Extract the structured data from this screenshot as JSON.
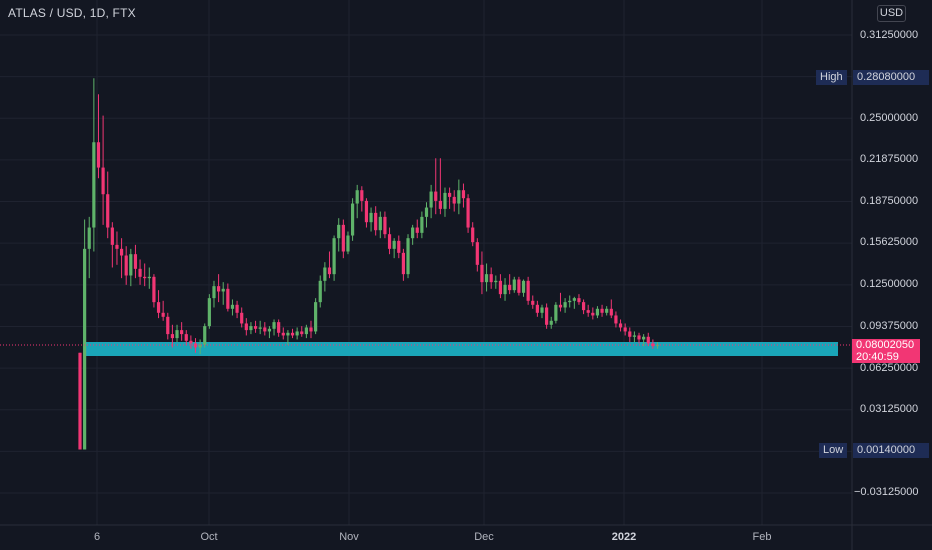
{
  "header": {
    "title": "ATLAS / USD, 1D, FTX",
    "currency_button": "USD"
  },
  "price_axis": {
    "ticks": [
      "0.31250000",
      "0.25000000",
      "0.21875000",
      "0.18750000",
      "0.15625000",
      "0.12500000",
      "0.09375000",
      "0.06250000",
      "0.03125000",
      "−0.03125000"
    ]
  },
  "time_axis": {
    "ticks": [
      "6",
      "Oct",
      "Nov",
      "Dec",
      "2022",
      "Feb"
    ]
  },
  "markers": {
    "high_label": "High",
    "high_value": "0.28080000",
    "low_label": "Low",
    "low_value": "0.00140000",
    "last_price": "0.08002050",
    "countdown": "20:40:59"
  },
  "colors": {
    "background": "#131722",
    "up": "#26a69a",
    "up_candle": "#5fb36a",
    "down_candle": "#f23674",
    "support_zone": "#1aa5b8",
    "last_price": "#f23674"
  },
  "chart_data": {
    "type": "candlestick",
    "title": "ATLAS / USD, 1D, FTX",
    "x_ticks": [
      "6",
      "Oct",
      "Nov",
      "Dec",
      "2022",
      "Feb"
    ],
    "ylim": [
      -0.04,
      0.325
    ],
    "grid": true,
    "high": 0.2808,
    "low": 0.0014,
    "last": 0.0800205,
    "support_zone": {
      "from": 0.072,
      "to": 0.08
    },
    "candles": [
      [
        0.074,
        0.074,
        0.0014,
        0.0014
      ],
      [
        0.0014,
        0.174,
        0.0014,
        0.152
      ],
      [
        0.152,
        0.176,
        0.13,
        0.168
      ],
      [
        0.168,
        0.28,
        0.15,
        0.232
      ],
      [
        0.232,
        0.268,
        0.205,
        0.213
      ],
      [
        0.213,
        0.252,
        0.17,
        0.193
      ],
      [
        0.193,
        0.21,
        0.16,
        0.168
      ],
      [
        0.168,
        0.172,
        0.138,
        0.155
      ],
      [
        0.155,
        0.165,
        0.14,
        0.152
      ],
      [
        0.152,
        0.16,
        0.13,
        0.147
      ],
      [
        0.147,
        0.154,
        0.125,
        0.132
      ],
      [
        0.132,
        0.152,
        0.124,
        0.148
      ],
      [
        0.148,
        0.155,
        0.13,
        0.137
      ],
      [
        0.137,
        0.144,
        0.125,
        0.131
      ],
      [
        0.131,
        0.141,
        0.124,
        0.13
      ],
      [
        0.13,
        0.138,
        0.122,
        0.131
      ],
      [
        0.131,
        0.133,
        0.108,
        0.112
      ],
      [
        0.112,
        0.121,
        0.1,
        0.104
      ],
      [
        0.104,
        0.113,
        0.098,
        0.101
      ],
      [
        0.101,
        0.104,
        0.084,
        0.088
      ],
      [
        0.088,
        0.095,
        0.078,
        0.085
      ],
      [
        0.085,
        0.095,
        0.082,
        0.091
      ],
      [
        0.091,
        0.097,
        0.083,
        0.088
      ],
      [
        0.088,
        0.091,
        0.08,
        0.083
      ],
      [
        0.083,
        0.087,
        0.077,
        0.081
      ],
      [
        0.081,
        0.085,
        0.074,
        0.078
      ],
      [
        0.078,
        0.084,
        0.073,
        0.08
      ],
      [
        0.08,
        0.096,
        0.078,
        0.094
      ],
      [
        0.094,
        0.118,
        0.092,
        0.115
      ],
      [
        0.115,
        0.128,
        0.108,
        0.124
      ],
      [
        0.124,
        0.133,
        0.112,
        0.12
      ],
      [
        0.12,
        0.127,
        0.11,
        0.122
      ],
      [
        0.122,
        0.126,
        0.105,
        0.107
      ],
      [
        0.107,
        0.114,
        0.102,
        0.11
      ],
      [
        0.11,
        0.113,
        0.1,
        0.104
      ],
      [
        0.104,
        0.108,
        0.093,
        0.096
      ],
      [
        0.096,
        0.1,
        0.087,
        0.091
      ],
      [
        0.091,
        0.097,
        0.088,
        0.094
      ],
      [
        0.094,
        0.098,
        0.089,
        0.092
      ],
      [
        0.092,
        0.098,
        0.088,
        0.093
      ],
      [
        0.093,
        0.097,
        0.087,
        0.09
      ],
      [
        0.09,
        0.094,
        0.085,
        0.092
      ],
      [
        0.092,
        0.099,
        0.087,
        0.097
      ],
      [
        0.097,
        0.099,
        0.086,
        0.089
      ],
      [
        0.089,
        0.093,
        0.084,
        0.087
      ],
      [
        0.087,
        0.091,
        0.08,
        0.089
      ],
      [
        0.089,
        0.092,
        0.085,
        0.087
      ],
      [
        0.087,
        0.093,
        0.084,
        0.09
      ],
      [
        0.09,
        0.094,
        0.086,
        0.088
      ],
      [
        0.088,
        0.095,
        0.085,
        0.093
      ],
      [
        0.093,
        0.098,
        0.085,
        0.09
      ],
      [
        0.09,
        0.115,
        0.088,
        0.112
      ],
      [
        0.112,
        0.132,
        0.108,
        0.128
      ],
      [
        0.128,
        0.142,
        0.12,
        0.138
      ],
      [
        0.138,
        0.15,
        0.13,
        0.133
      ],
      [
        0.133,
        0.162,
        0.128,
        0.16
      ],
      [
        0.16,
        0.175,
        0.15,
        0.17
      ],
      [
        0.17,
        0.174,
        0.145,
        0.15
      ],
      [
        0.15,
        0.165,
        0.148,
        0.162
      ],
      [
        0.162,
        0.19,
        0.158,
        0.186
      ],
      [
        0.186,
        0.2,
        0.175,
        0.196
      ],
      [
        0.196,
        0.199,
        0.18,
        0.188
      ],
      [
        0.188,
        0.19,
        0.168,
        0.172
      ],
      [
        0.172,
        0.183,
        0.165,
        0.179
      ],
      [
        0.179,
        0.184,
        0.162,
        0.166
      ],
      [
        0.166,
        0.18,
        0.16,
        0.176
      ],
      [
        0.176,
        0.18,
        0.16,
        0.163
      ],
      [
        0.163,
        0.168,
        0.148,
        0.152
      ],
      [
        0.152,
        0.16,
        0.145,
        0.158
      ],
      [
        0.158,
        0.162,
        0.145,
        0.149
      ],
      [
        0.149,
        0.152,
        0.128,
        0.133
      ],
      [
        0.133,
        0.163,
        0.13,
        0.16
      ],
      [
        0.16,
        0.17,
        0.155,
        0.168
      ],
      [
        0.168,
        0.174,
        0.16,
        0.164
      ],
      [
        0.164,
        0.18,
        0.16,
        0.176
      ],
      [
        0.176,
        0.187,
        0.168,
        0.183
      ],
      [
        0.183,
        0.2,
        0.175,
        0.195
      ],
      [
        0.195,
        0.22,
        0.178,
        0.188
      ],
      [
        0.188,
        0.22,
        0.178,
        0.182
      ],
      [
        0.182,
        0.198,
        0.176,
        0.194
      ],
      [
        0.194,
        0.198,
        0.182,
        0.191
      ],
      [
        0.191,
        0.196,
        0.18,
        0.186
      ],
      [
        0.186,
        0.204,
        0.178,
        0.196
      ],
      [
        0.196,
        0.201,
        0.183,
        0.19
      ],
      [
        0.19,
        0.193,
        0.164,
        0.168
      ],
      [
        0.168,
        0.172,
        0.154,
        0.157
      ],
      [
        0.157,
        0.16,
        0.135,
        0.14
      ],
      [
        0.14,
        0.15,
        0.118,
        0.127
      ],
      [
        0.127,
        0.141,
        0.12,
        0.133
      ],
      [
        0.133,
        0.138,
        0.122,
        0.127
      ],
      [
        0.127,
        0.132,
        0.122,
        0.128
      ],
      [
        0.128,
        0.133,
        0.115,
        0.118
      ],
      [
        0.118,
        0.13,
        0.113,
        0.125
      ],
      [
        0.125,
        0.133,
        0.118,
        0.121
      ],
      [
        0.121,
        0.131,
        0.119,
        0.129
      ],
      [
        0.129,
        0.131,
        0.117,
        0.119
      ],
      [
        0.119,
        0.129,
        0.116,
        0.128
      ],
      [
        0.128,
        0.131,
        0.11,
        0.113
      ],
      [
        0.113,
        0.117,
        0.107,
        0.11
      ],
      [
        0.11,
        0.113,
        0.101,
        0.104
      ],
      [
        0.104,
        0.11,
        0.1,
        0.108
      ],
      [
        0.108,
        0.111,
        0.092,
        0.095
      ],
      [
        0.095,
        0.101,
        0.092,
        0.098
      ],
      [
        0.098,
        0.112,
        0.096,
        0.11
      ],
      [
        0.11,
        0.119,
        0.105,
        0.108
      ],
      [
        0.108,
        0.115,
        0.104,
        0.112
      ],
      [
        0.112,
        0.117,
        0.108,
        0.113
      ],
      [
        0.113,
        0.116,
        0.107,
        0.115
      ],
      [
        0.115,
        0.118,
        0.11,
        0.112
      ],
      [
        0.112,
        0.114,
        0.103,
        0.106
      ],
      [
        0.106,
        0.11,
        0.101,
        0.104
      ],
      [
        0.104,
        0.108,
        0.099,
        0.102
      ],
      [
        0.102,
        0.109,
        0.1,
        0.107
      ],
      [
        0.107,
        0.11,
        0.101,
        0.104
      ],
      [
        0.104,
        0.109,
        0.102,
        0.107
      ],
      [
        0.107,
        0.114,
        0.1,
        0.102
      ],
      [
        0.102,
        0.105,
        0.093,
        0.096
      ],
      [
        0.096,
        0.099,
        0.09,
        0.093
      ],
      [
        0.093,
        0.096,
        0.087,
        0.09
      ],
      [
        0.09,
        0.093,
        0.082,
        0.086
      ],
      [
        0.086,
        0.09,
        0.082,
        0.087
      ],
      [
        0.087,
        0.089,
        0.081,
        0.084
      ],
      [
        0.084,
        0.088,
        0.079,
        0.086
      ],
      [
        0.086,
        0.089,
        0.079,
        0.081
      ],
      [
        0.081,
        0.084,
        0.077,
        0.079
      ],
      [
        0.079,
        0.082,
        0.077,
        0.08
      ]
    ]
  }
}
